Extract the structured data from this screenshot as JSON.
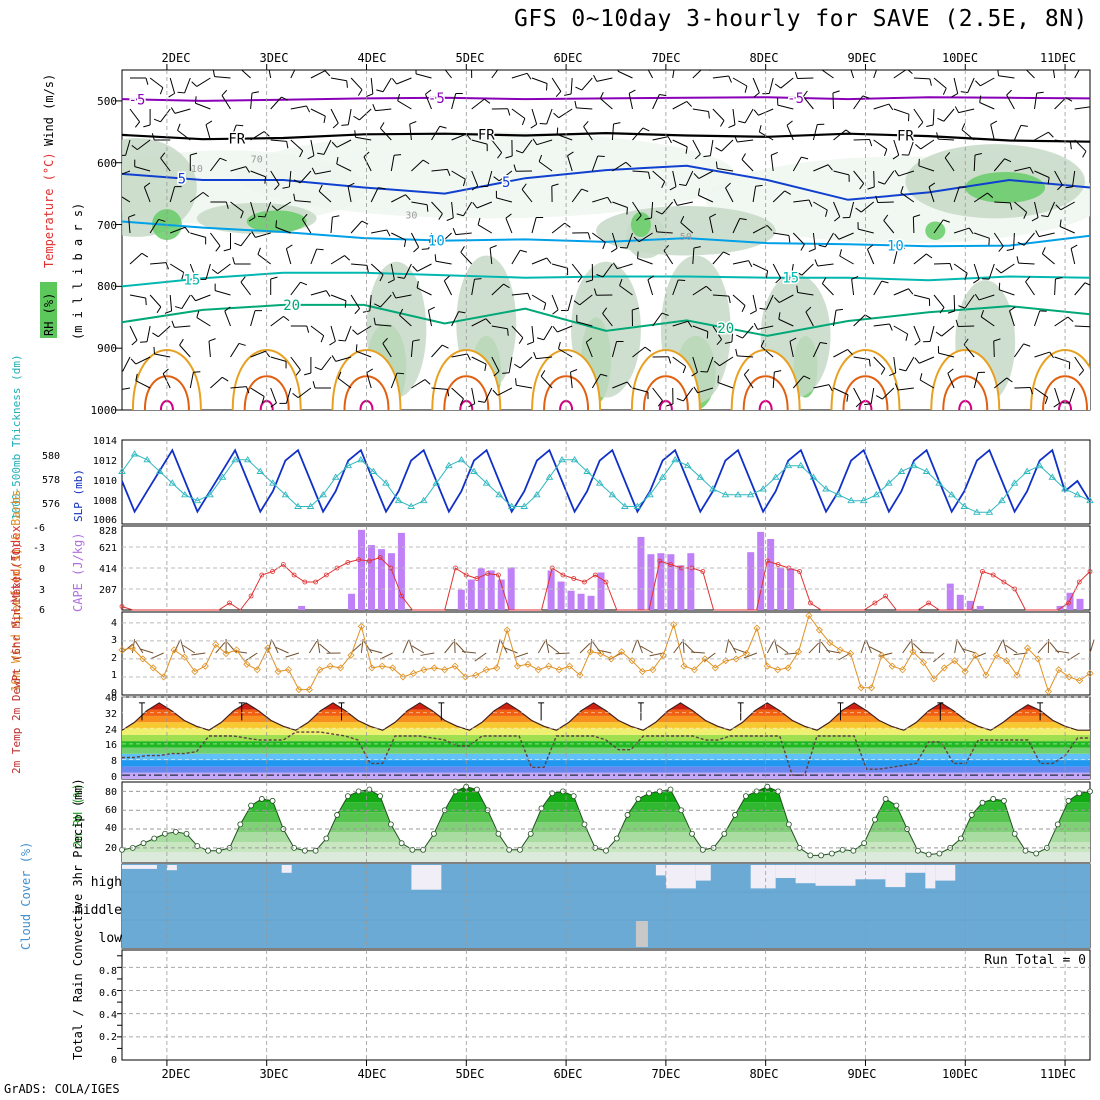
{
  "chart_data": {
    "type": "meteogram",
    "title": "GFS 0~10day 3-hourly for SAVE (2.5E, 8N)",
    "credit": "GrADS: COLA/IGES",
    "dates": [
      "2DEC",
      "3DEC",
      "4DEC",
      "5DEC",
      "6DEC",
      "7DEC",
      "8DEC",
      "9DEC",
      "10DEC",
      "11DEC"
    ],
    "x_range_days": [
      -0.45,
      9.25
    ],
    "upper_air": {
      "ylabel_rh": "RH (%)",
      "ylabel_temp": "Temperature (°C)",
      "ylabel_wind": "Wind (m/s)",
      "ylabel_units": "(m i l l i b a r s)",
      "y_ticks": [
        "500",
        "600",
        "700",
        "800",
        "900",
        "1000"
      ],
      "y_range_mb": [
        450,
        1000
      ],
      "rh_contour_labels": [
        "10",
        "30",
        "50",
        "70"
      ],
      "temperature_isotherms": [
        {
          "label": "-5",
          "color": "#8a00b8",
          "mb": [
            497,
            500,
            498,
            496,
            495,
            497,
            496,
            495,
            494,
            497,
            494,
            495,
            496
          ]
        },
        {
          "label": "FR",
          "color": "#000000",
          "mb": [
            555,
            562,
            560,
            554,
            553,
            556,
            552,
            556,
            558,
            553,
            557,
            564,
            566
          ]
        },
        {
          "label": "5",
          "color": "#1040d0",
          "mb": [
            618,
            628,
            628,
            640,
            650,
            625,
            612,
            605,
            628,
            660,
            648,
            628,
            640
          ]
        },
        {
          "label": "10",
          "color": "#00a0e8",
          "mb": [
            695,
            705,
            712,
            722,
            726,
            724,
            728,
            722,
            730,
            732,
            735,
            734,
            718
          ]
        },
        {
          "label": "15",
          "color": "#00b8b0",
          "mb": [
            800,
            787,
            778,
            778,
            782,
            786,
            784,
            784,
            786,
            786,
            790,
            784,
            786
          ]
        },
        {
          "label": "20",
          "color": "#00a878",
          "mb": [
            858,
            838,
            830,
            830,
            860,
            836,
            872,
            855,
            880,
            856,
            842,
            832,
            845
          ]
        }
      ],
      "isotherm_label_positions": [
        {
          "label": "-5",
          "day": -0.3
        },
        {
          "label": "-5",
          "day": 2.7
        },
        {
          "label": "-5",
          "day": 6.3
        },
        {
          "label": "FR",
          "day": 0.7
        },
        {
          "label": "FR",
          "day": 3.2
        },
        {
          "label": "FR",
          "day": 7.4
        },
        {
          "label": "5",
          "day": 0.15
        },
        {
          "label": "5",
          "day": 3.4
        },
        {
          "label": "10",
          "day": 2.7
        },
        {
          "label": "10",
          "day": 7.3
        },
        {
          "label": "15",
          "day": 0.25
        },
        {
          "label": "15",
          "day": 6.25
        },
        {
          "label": "20",
          "day": 1.25
        },
        {
          "label": "20",
          "day": 5.6
        }
      ]
    },
    "thickness_slp": {
      "ylabel_thickness": "1000-500mb Thickness (dm)",
      "ylabel_slp": "SLP (mb)",
      "thickness_ticks": [
        "580",
        "578",
        "576"
      ],
      "slp_ticks": [
        "1014",
        "1012",
        "1010",
        "1008",
        "1006"
      ],
      "thickness_range": [
        574.5,
        581.7
      ],
      "slp_range": [
        1005.8,
        1014
      ],
      "slp": [
        1010,
        1007,
        1009,
        1011,
        1013,
        1010,
        1007,
        1009,
        1011,
        1013,
        1010,
        1007,
        1009,
        1012,
        1013,
        1010,
        1007,
        1009,
        1012,
        1013,
        1010,
        1007,
        1009,
        1012,
        1013,
        1010,
        1007,
        1009,
        1012,
        1013,
        1010,
        1007,
        1009,
        1012,
        1013,
        1010,
        1007,
        1009,
        1012,
        1013,
        1010,
        1007,
        1009,
        1012,
        1013,
        1010,
        1007,
        1009,
        1012,
        1013,
        1010,
        1007,
        1009,
        1012,
        1013,
        1010,
        1007,
        1009,
        1012,
        1013,
        1010,
        1007,
        1009,
        1012,
        1013,
        1010,
        1007,
        1009,
        1012,
        1013,
        1010,
        1007,
        1009,
        1012,
        1013,
        1009,
        1010,
        1008
      ],
      "thickness": [
        579,
        580.5,
        580,
        579,
        578,
        577,
        576.5,
        577,
        578.5,
        580,
        580,
        579,
        578,
        577,
        576,
        576,
        577,
        578.5,
        579.5,
        580,
        579,
        578,
        576.5,
        576,
        576.5,
        578,
        579.5,
        580,
        579,
        578,
        577,
        576,
        576,
        577,
        578.5,
        580,
        580,
        579,
        578,
        577,
        576,
        576,
        577,
        578.5,
        580,
        579.5,
        578.5,
        577.5,
        577,
        577,
        577,
        577.5,
        578.5,
        579.5,
        579.5,
        578.5,
        577.5,
        577,
        576.5,
        576.5,
        577,
        578,
        579,
        579.5,
        579,
        578,
        577,
        576,
        575.5,
        575.5,
        576.5,
        578,
        579,
        579.5,
        578.5,
        577.5,
        577,
        576.5
      ]
    },
    "instability": {
      "ylabel_li": "Lifted Index",
      "ylabel_cape": "CAPE (J/kg)",
      "li_ticks": [
        "-6",
        "-3",
        "0",
        "3",
        "6"
      ],
      "cape_ticks": [
        "828",
        "621",
        "414",
        "207"
      ],
      "cape_range": [
        0,
        828
      ],
      "li_range": [
        -6,
        6
      ],
      "cape_bars": [
        {
          "day": 1.35,
          "v": 40
        },
        {
          "day": 1.85,
          "v": 160
        },
        {
          "day": 1.95,
          "v": 790
        },
        {
          "day": 2.05,
          "v": 640
        },
        {
          "day": 2.15,
          "v": 600
        },
        {
          "day": 2.25,
          "v": 560
        },
        {
          "day": 2.35,
          "v": 760
        },
        {
          "day": 2.95,
          "v": 200
        },
        {
          "day": 3.05,
          "v": 300
        },
        {
          "day": 3.15,
          "v": 410
        },
        {
          "day": 3.25,
          "v": 390
        },
        {
          "day": 3.35,
          "v": 300
        },
        {
          "day": 3.45,
          "v": 420
        },
        {
          "day": 3.85,
          "v": 390
        },
        {
          "day": 3.95,
          "v": 280
        },
        {
          "day": 4.05,
          "v": 190
        },
        {
          "day": 4.15,
          "v": 160
        },
        {
          "day": 4.25,
          "v": 140
        },
        {
          "day": 4.35,
          "v": 370
        },
        {
          "day": 4.75,
          "v": 720
        },
        {
          "day": 4.85,
          "v": 550
        },
        {
          "day": 4.95,
          "v": 560
        },
        {
          "day": 5.05,
          "v": 550
        },
        {
          "day": 5.15,
          "v": 440
        },
        {
          "day": 5.25,
          "v": 560
        },
        {
          "day": 5.85,
          "v": 570
        },
        {
          "day": 5.95,
          "v": 770
        },
        {
          "day": 6.05,
          "v": 700
        },
        {
          "day": 6.15,
          "v": 420
        },
        {
          "day": 6.25,
          "v": 410
        },
        {
          "day": 7.85,
          "v": 260
        },
        {
          "day": 7.95,
          "v": 150
        },
        {
          "day": 8.05,
          "v": 90
        },
        {
          "day": 8.15,
          "v": 40
        },
        {
          "day": 8.95,
          "v": 40
        },
        {
          "day": 9.05,
          "v": 170
        },
        {
          "day": 9.15,
          "v": 110
        }
      ],
      "li": [
        5.5,
        6,
        6,
        6,
        6,
        6,
        6,
        6,
        6,
        6,
        5,
        6,
        4,
        1,
        0.5,
        -0.5,
        1,
        2,
        2,
        1,
        0,
        -0.8,
        -1.2,
        -1,
        -1.5,
        0,
        4,
        6,
        6,
        6,
        6,
        0,
        1,
        1.5,
        0.8,
        1,
        6,
        6,
        6,
        6,
        0,
        1,
        1.5,
        2,
        1,
        2,
        6,
        6,
        6,
        6,
        -1,
        -0.5,
        0,
        0,
        0.5,
        6,
        6,
        6,
        6,
        6,
        -1,
        -0.5,
        0,
        0.5,
        5,
        6,
        6,
        6,
        6,
        6,
        5,
        4,
        6,
        6,
        6,
        5,
        6,
        6,
        6,
        6,
        0.5,
        1,
        2,
        3,
        6,
        6,
        6,
        6,
        5,
        2,
        0.5
      ]
    },
    "wind10m": {
      "ylabel": "10m Wind Speed (m/s) & Barbs",
      "y_ticks": [
        "4",
        "3",
        "2",
        "1",
        "0"
      ],
      "y_range": [
        0,
        4.6
      ],
      "speed": [
        2.5,
        2.6,
        2.0,
        1.5,
        1.0,
        2.5,
        2.1,
        1.3,
        1.6,
        2.8,
        2.3,
        2.5,
        1.7,
        1.4,
        2.6,
        1.3,
        1.4,
        0.3,
        0.3,
        1.4,
        1.6,
        1.5,
        2.2,
        3.8,
        1.5,
        1.6,
        1.5,
        1.0,
        1.2,
        1.4,
        1.5,
        1.4,
        1.6,
        1.0,
        1.1,
        1.4,
        1.5,
        3.6,
        1.6,
        1.7,
        1.4,
        1.6,
        1.4,
        1.6,
        1.1,
        2.4,
        2.3,
        2.0,
        2.4,
        1.9,
        1.3,
        1.4,
        2.2,
        3.9,
        1.6,
        1.4,
        2.0,
        1.5,
        1.9,
        2.0,
        2.3,
        3.7,
        1.6,
        1.4,
        1.5,
        2.4,
        4.4,
        3.6,
        2.9,
        2.5,
        2.3,
        0.4,
        0.4,
        2.2,
        1.6,
        1.4,
        2.4,
        1.8,
        0.9,
        1.5,
        1.9,
        1.3,
        2.2,
        1.1,
        2.2,
        1.9,
        1.1,
        2.6,
        2.0,
        0.2,
        1.4,
        1.0,
        0.8,
        1.2
      ]
    },
    "temp2m": {
      "ylabel": "2m Temp 2m DewPt (6hr Min/Max) (°C)",
      "y_ticks": [
        "40",
        "32",
        "24",
        "16",
        "8",
        "0"
      ],
      "y_range": [
        -2,
        40
      ],
      "band_colors": [
        "#c8a8f8",
        "#6888f0",
        "#2098f0",
        "#60c0f8",
        "#70d070",
        "#20b820",
        "#a0e050",
        "#f0f070",
        "#f8c830",
        "#f89020",
        "#f06010",
        "#d02010",
        "#a01010"
      ],
      "temperature": [
        23,
        27,
        33,
        37,
        33,
        28,
        25,
        23,
        27,
        33,
        37,
        33,
        28,
        25,
        23,
        27,
        33,
        37,
        33,
        28,
        25,
        23,
        27,
        33,
        37,
        33,
        28,
        25,
        23,
        27,
        33,
        37,
        33,
        28,
        25,
        23,
        27,
        33,
        37,
        33,
        28,
        25,
        23,
        27,
        33,
        37,
        33,
        28,
        25,
        23,
        27,
        33,
        37,
        33,
        28,
        25,
        23,
        27,
        33,
        37,
        33,
        28,
        25,
        23,
        27,
        33,
        37,
        33,
        28,
        25,
        23,
        27,
        32,
        36,
        33,
        28,
        25,
        23,
        23
      ],
      "dewpoint": [
        9,
        9,
        10,
        10,
        11,
        11,
        12,
        20,
        20,
        20,
        19,
        18,
        18,
        18,
        22,
        22,
        22,
        21,
        20,
        18,
        6,
        6,
        20,
        20,
        20,
        19,
        18,
        15,
        15,
        20,
        20,
        20,
        20,
        4,
        4,
        20,
        20,
        20,
        20,
        18,
        13,
        13,
        20,
        20,
        20,
        20,
        20,
        18,
        18,
        20,
        20,
        20,
        20,
        20,
        0,
        0,
        20,
        20,
        20,
        20,
        3,
        3,
        4,
        5,
        6,
        17,
        17,
        6,
        6,
        18,
        18,
        18,
        18,
        18,
        6,
        6,
        10,
        19,
        19
      ]
    },
    "rh2m": {
      "ylabel": "2m RH (%)",
      "y_ticks": [
        "80",
        "60",
        "40",
        "20"
      ],
      "y_range": [
        5,
        90
      ],
      "values": [
        18,
        20,
        25,
        30,
        35,
        37,
        35,
        22,
        17,
        17,
        20,
        45,
        65,
        72,
        70,
        40,
        20,
        17,
        17,
        30,
        55,
        75,
        80,
        82,
        75,
        45,
        25,
        18,
        18,
        35,
        60,
        80,
        85,
        82,
        60,
        35,
        18,
        18,
        35,
        62,
        78,
        80,
        75,
        45,
        20,
        17,
        30,
        55,
        72,
        78,
        80,
        82,
        60,
        35,
        18,
        20,
        35,
        55,
        75,
        80,
        85,
        80,
        45,
        20,
        12,
        12,
        14,
        18,
        17,
        25,
        50,
        72,
        65,
        40,
        17,
        13,
        14,
        20,
        30,
        55,
        68,
        72,
        70,
        35,
        17,
        14,
        20,
        45,
        70,
        78,
        80
      ]
    },
    "cloud": {
      "ylabel": "Cloud Cover (%)",
      "levels": [
        "high",
        "middle",
        "low"
      ],
      "high_gaps": [
        {
          "d0": 2.45,
          "d1": 2.75,
          "depth": 0.95
        },
        {
          "d0": 4.9,
          "d1": 5.0,
          "depth": 0.4
        },
        {
          "d0": 5.0,
          "d1": 5.3,
          "depth": 0.9
        },
        {
          "d0": 5.3,
          "d1": 5.45,
          "depth": 0.6
        },
        {
          "d0": 5.85,
          "d1": 6.1,
          "depth": 0.9
        },
        {
          "d0": 6.1,
          "d1": 6.3,
          "depth": 0.5
        },
        {
          "d0": 6.3,
          "d1": 6.5,
          "depth": 0.7
        },
        {
          "d0": 6.5,
          "d1": 6.9,
          "depth": 0.8
        },
        {
          "d0": 6.9,
          "d1": 7.2,
          "depth": 0.55
        },
        {
          "d0": 7.2,
          "d1": 7.4,
          "depth": 0.85
        },
        {
          "d0": 7.4,
          "d1": 7.6,
          "depth": 0.3
        },
        {
          "d0": 7.6,
          "d1": 7.7,
          "depth": 0.9
        },
        {
          "d0": 7.7,
          "d1": 7.9,
          "depth": 0.6
        },
        {
          "d0": 1.15,
          "d1": 1.25,
          "depth": 0.3
        },
        {
          "d0": -0.45,
          "d1": -0.1,
          "depth": 0.15
        },
        {
          "d0": 0.0,
          "d1": 0.1,
          "depth": 0.2
        }
      ],
      "low_gaps": [
        {
          "d0": 4.7,
          "d1": 4.82,
          "depth": 1.0
        }
      ]
    },
    "precip": {
      "ylabel": "Total / Rain Convective 3hr Precip (mm)",
      "run_total": "Run Total = 0",
      "y_ticks": [
        "0.8",
        "0.6",
        "0.4",
        "0.2",
        "0"
      ],
      "y_range": [
        0,
        0.95
      ],
      "values": []
    }
  }
}
